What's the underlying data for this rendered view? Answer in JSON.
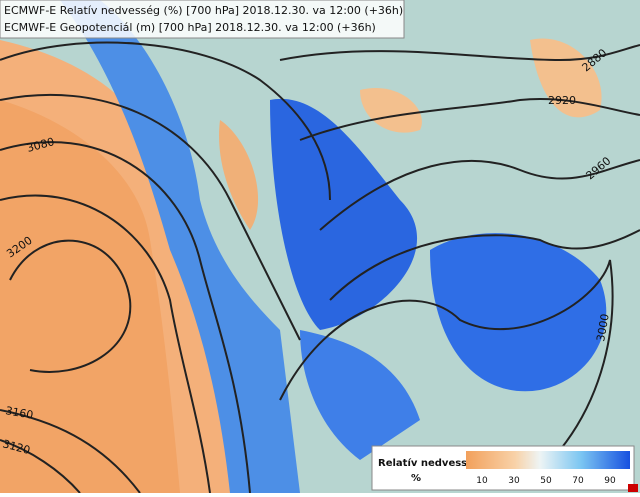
{
  "header": {
    "lines": [
      "ECMWF-E Relatív nedvesség (%) [700 hPa] 2018.12.30. va 12:00 (+36h)",
      "ECMWF-E Geopotenciál (m) [700 hPa] 2018.12.30. va 12:00 (+36h)"
    ]
  },
  "contour_labels": [
    "3080",
    "3200",
    "3160",
    "3120",
    "2880",
    "2920",
    "2960",
    "3000"
  ],
  "legend": {
    "title": "Relatív nedvesség",
    "unit": "%",
    "ticks": [
      "10",
      "30",
      "50",
      "70",
      "90"
    ]
  }
}
